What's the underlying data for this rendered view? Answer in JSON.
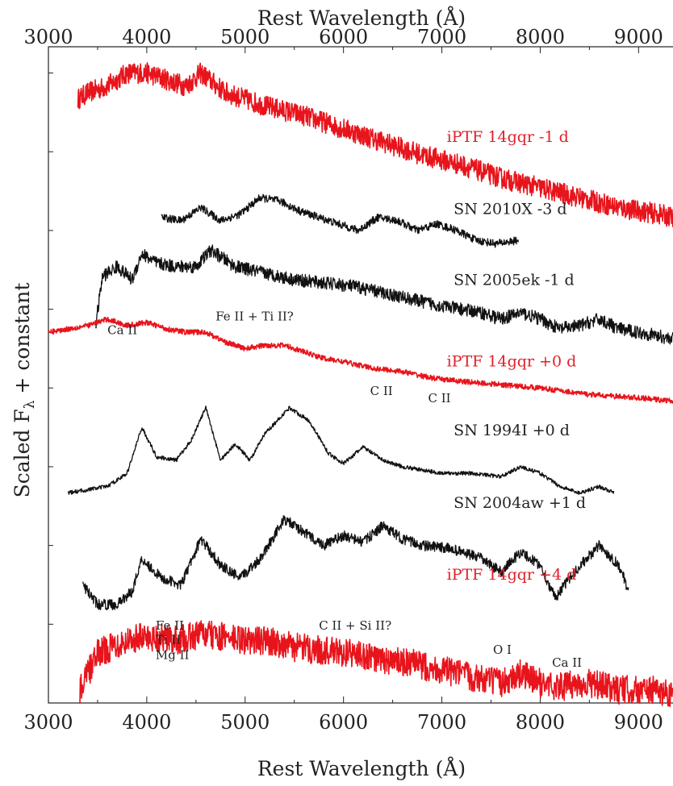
{
  "chart_data": {
    "type": "line",
    "xlabel_top": "Rest Wavelength (Å)",
    "xlabel_bottom": "Rest Wavelength (Å)",
    "ylabel": "Scaled F",
    "ylabel_sub": "λ",
    "ylabel_suffix": " + constant",
    "xlim": [
      3000,
      9350
    ],
    "ylim": [
      0,
      1
    ],
    "x_ticks": [
      3000,
      4000,
      5000,
      6000,
      7000,
      8000,
      9000
    ],
    "x_tick_labels": [
      "3000",
      "4000",
      "5000",
      "6000",
      "7000",
      "8000",
      "9000"
    ],
    "grid": false,
    "legend": "none",
    "colors": {
      "red": "#e8141c",
      "black": "#111111"
    },
    "series": [
      {
        "name": "iPTF 14gqr -1 d",
        "color": "#e8141c",
        "noise": 0.016,
        "x": [
          3300,
          3400,
          3600,
          3800,
          4000,
          4200,
          4400,
          4550,
          4800,
          5000,
          5200,
          5600,
          6000,
          6400,
          6800,
          7200,
          7600,
          8000,
          8400,
          8800,
          9200,
          9350
        ],
        "y": [
          0.92,
          0.93,
          0.94,
          0.96,
          0.96,
          0.95,
          0.94,
          0.96,
          0.93,
          0.92,
          0.91,
          0.895,
          0.875,
          0.855,
          0.835,
          0.82,
          0.8,
          0.785,
          0.77,
          0.755,
          0.745,
          0.74
        ]
      },
      {
        "name": "SN 2010X -3 d",
        "color": "#111111",
        "noise": 0.006,
        "x": [
          4150,
          4350,
          4550,
          4750,
          4950,
          5150,
          5350,
          5550,
          5750,
          5950,
          6150,
          6350,
          6550,
          6750,
          6950,
          7150,
          7350,
          7550,
          7780
        ],
        "y": [
          0.74,
          0.735,
          0.755,
          0.735,
          0.745,
          0.77,
          0.765,
          0.75,
          0.74,
          0.73,
          0.72,
          0.74,
          0.735,
          0.72,
          0.73,
          0.72,
          0.705,
          0.7,
          0.705
        ]
      },
      {
        "name": "SN 2005ek -1 d",
        "color": "#111111",
        "noise": 0.01,
        "x": [
          3480,
          3550,
          3700,
          3850,
          3950,
          4100,
          4300,
          4500,
          4650,
          4900,
          5200,
          5500,
          5800,
          6100,
          6400,
          6700,
          7000,
          7200,
          7400,
          7600,
          7800,
          8000,
          8200,
          8400,
          8600,
          8800,
          9000,
          9350
        ],
        "y": [
          0.575,
          0.65,
          0.665,
          0.645,
          0.685,
          0.67,
          0.665,
          0.665,
          0.69,
          0.665,
          0.655,
          0.645,
          0.64,
          0.635,
          0.625,
          0.615,
          0.605,
          0.6,
          0.595,
          0.585,
          0.595,
          0.585,
          0.57,
          0.575,
          0.585,
          0.57,
          0.565,
          0.555
        ]
      },
      {
        "name": "iPTF 14gqr +0 d",
        "color": "#e8141c",
        "noise": 0.004,
        "x": [
          3000,
          3200,
          3400,
          3600,
          3800,
          4000,
          4200,
          4400,
          4600,
          4800,
          5000,
          5200,
          5400,
          5600,
          5800,
          6000,
          6300,
          6600,
          6900,
          7200,
          7600,
          8000,
          8500,
          9000,
          9350
        ],
        "y": [
          0.565,
          0.57,
          0.575,
          0.585,
          0.575,
          0.58,
          0.57,
          0.565,
          0.565,
          0.55,
          0.54,
          0.545,
          0.545,
          0.535,
          0.525,
          0.52,
          0.51,
          0.505,
          0.495,
          0.49,
          0.485,
          0.48,
          0.47,
          0.465,
          0.46
        ]
      },
      {
        "name": "SN 1994I +0 d",
        "color": "#111111",
        "noise": 0.003,
        "x": [
          3200,
          3400,
          3600,
          3800,
          3950,
          4100,
          4300,
          4450,
          4600,
          4750,
          4900,
          5050,
          5200,
          5450,
          5650,
          5850,
          6000,
          6200,
          6400,
          6600,
          6800,
          7000,
          7300,
          7600,
          7800,
          8000,
          8200,
          8400,
          8600,
          8750
        ],
        "y": [
          0.32,
          0.325,
          0.33,
          0.35,
          0.42,
          0.375,
          0.37,
          0.4,
          0.45,
          0.37,
          0.395,
          0.37,
          0.41,
          0.45,
          0.43,
          0.38,
          0.365,
          0.39,
          0.37,
          0.36,
          0.355,
          0.35,
          0.35,
          0.345,
          0.36,
          0.35,
          0.33,
          0.32,
          0.33,
          0.32
        ]
      },
      {
        "name": "SN 2004aw +1 d",
        "color": "#111111",
        "noise": 0.008,
        "x": [
          3350,
          3500,
          3700,
          3850,
          3950,
          4150,
          4350,
          4550,
          4750,
          4950,
          5150,
          5400,
          5600,
          5800,
          6000,
          6200,
          6400,
          6600,
          6800,
          7100,
          7400,
          7600,
          7800,
          8000,
          8150,
          8350,
          8600,
          8800,
          8900
        ],
        "y": [
          0.18,
          0.15,
          0.15,
          0.17,
          0.22,
          0.19,
          0.18,
          0.25,
          0.21,
          0.19,
          0.22,
          0.28,
          0.26,
          0.24,
          0.255,
          0.245,
          0.27,
          0.25,
          0.24,
          0.235,
          0.22,
          0.2,
          0.23,
          0.21,
          0.16,
          0.2,
          0.24,
          0.21,
          0.17
        ]
      },
      {
        "name": "iPTF 14gqr +4 d",
        "color": "#e8141c",
        "noise": 0.022,
        "x": [
          3320,
          3500,
          3700,
          3900,
          4100,
          4300,
          4550,
          4800,
          5000,
          5250,
          5500,
          5800,
          6100,
          6400,
          6700,
          7000,
          7300,
          7600,
          7800,
          8000,
          8200,
          8500,
          8800,
          9100,
          9350
        ],
        "y": [
          0.02,
          0.075,
          0.09,
          0.1,
          0.1,
          0.095,
          0.105,
          0.1,
          0.095,
          0.095,
          0.085,
          0.08,
          0.075,
          0.065,
          0.06,
          0.05,
          0.04,
          0.03,
          0.045,
          0.03,
          0.025,
          0.03,
          0.02,
          0.02,
          0.015
        ]
      }
    ],
    "series_labels": [
      {
        "text": "iPTF 14gqr -1 d",
        "color": "red",
        "x": 7050,
        "y": 0.855
      },
      {
        "text": "SN 2010X -3 d",
        "color": "black",
        "x": 7120,
        "y": 0.745
      },
      {
        "text": "SN 2005ek -1 d",
        "color": "black",
        "x": 7120,
        "y": 0.637
      },
      {
        "text": "iPTF 14gqr +0 d",
        "color": "red",
        "x": 7050,
        "y": 0.513
      },
      {
        "text": "SN 1994I +0 d",
        "color": "black",
        "x": 7120,
        "y": 0.408
      },
      {
        "text": "SN 2004aw +1 d",
        "color": "black",
        "x": 7120,
        "y": 0.297
      },
      {
        "text": "iPTF 14gqr +4 d",
        "color": "red",
        "x": 7050,
        "y": 0.188
      }
    ],
    "annotations": [
      {
        "text": "Ca II",
        "x": 3600,
        "y": 0.562
      },
      {
        "text": "Fe II + Ti II?",
        "x": 4700,
        "y": 0.583
      },
      {
        "text": "C II",
        "x": 6270,
        "y": 0.469
      },
      {
        "text": "C II",
        "x": 6860,
        "y": 0.458
      },
      {
        "text": "Fe II",
        "x": 4090,
        "y": 0.112
      },
      {
        "text": "Ti II",
        "x": 4090,
        "y": 0.09
      },
      {
        "text": "Mg II",
        "x": 4090,
        "y": 0.067
      },
      {
        "text": "C II + Si II?",
        "x": 5750,
        "y": 0.112
      },
      {
        "text": "O I",
        "x": 7520,
        "y": 0.075
      },
      {
        "text": "Ca II",
        "x": 8120,
        "y": 0.055
      }
    ]
  }
}
